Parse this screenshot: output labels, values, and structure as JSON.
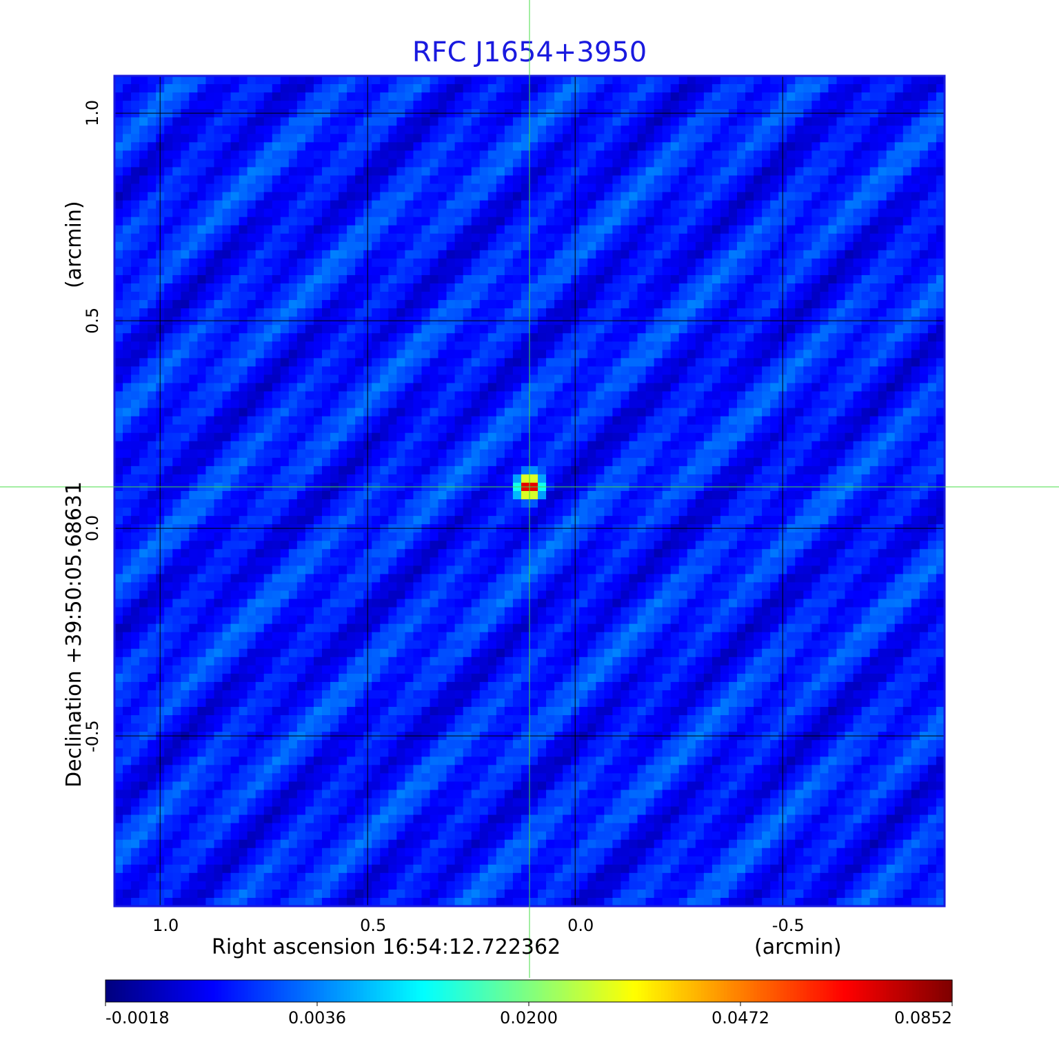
{
  "chart_data": {
    "type": "heatmap",
    "title": "RFC J1654+3950",
    "xlabel": "Right ascension  16:54:12.722362",
    "xunit": "(arcmin)",
    "ylabel": "Declination  +39:50:05.68631",
    "yunit": "(arcmin)",
    "xlim": [
      1.11,
      -0.89
    ],
    "ylim": [
      -0.91,
      1.09
    ],
    "xticks": [
      "1.0",
      "0.5",
      "0.0",
      "-0.5"
    ],
    "xtick_values": [
      1.0,
      0.5,
      0.0,
      -0.5
    ],
    "yticks": [
      "1.0",
      "0.5",
      "0.0",
      "-0.5"
    ],
    "ytick_values": [
      1.0,
      0.5,
      0.0,
      -0.5
    ],
    "grid": true,
    "colormap": "jet",
    "colorbar_ticks": [
      "-0.0018",
      "0.0036",
      "0.0200",
      "0.0472",
      "0.0852"
    ],
    "colorbar_values": [
      -0.0018,
      0.0036,
      0.02,
      0.0472,
      0.0852
    ],
    "source": {
      "x": 0.11,
      "y": 0.1,
      "peak": 0.0852
    },
    "background_level": 0.0015,
    "crosshair": {
      "x": 0.11,
      "y": 0.1
    },
    "colors": {
      "title": "#1a1adf",
      "frame": "#1a1adf",
      "crosshair": "#44dd44",
      "grid": "#000000"
    }
  }
}
